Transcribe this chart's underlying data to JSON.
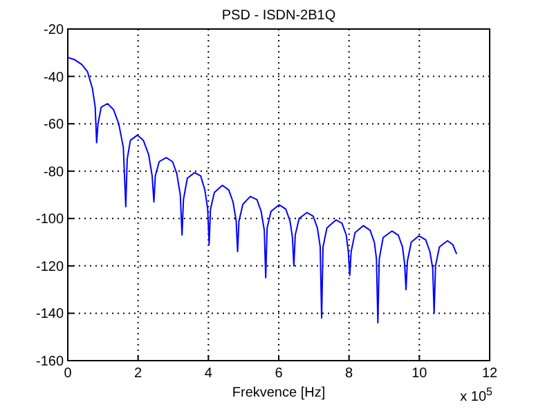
{
  "chart_data": {
    "type": "line",
    "title": "PSD - ISDN-2B1Q",
    "xlabel": "Frekvence [Hz]",
    "annotations": [
      "x 10$^{5}$"
    ],
    "xlim": [
      0,
      12
    ],
    "xticks": [
      0,
      2,
      4,
      6,
      8,
      10,
      12
    ],
    "ylim": [
      -160,
      -20
    ],
    "yticks": [
      -160,
      -140,
      -120,
      -100,
      -80,
      -60,
      -40,
      -20
    ],
    "grid": true,
    "series": [
      {
        "color": "#0000ff",
        "x": [
          0,
          0.2,
          0.4,
          0.56,
          0.7,
          0.78,
          0.82,
          0.86,
          0.95,
          1.13,
          1.3,
          1.45,
          1.58,
          1.65,
          1.69,
          1.78,
          1.98,
          2.15,
          2.3,
          2.4,
          2.45,
          2.49,
          2.6,
          2.8,
          2.98,
          3.1,
          3.2,
          3.25,
          3.29,
          3.4,
          3.61,
          3.78,
          3.9,
          3.98,
          4.02,
          4.06,
          4.17,
          4.4,
          4.58,
          4.7,
          4.79,
          4.83,
          4.87,
          4.98,
          5.19,
          5.38,
          5.5,
          5.59,
          5.63,
          5.67,
          5.78,
          6.01,
          6.2,
          6.32,
          6.39,
          6.43,
          6.47,
          6.58,
          6.8,
          6.98,
          7.1,
          7.18,
          7.22,
          7.26,
          7.37,
          7.63,
          7.8,
          7.92,
          7.98,
          8.02,
          8.06,
          8.17,
          8.41,
          8.6,
          8.72,
          8.78,
          8.82,
          8.86,
          8.97,
          9.22,
          9.4,
          9.52,
          9.58,
          9.62,
          9.66,
          9.77,
          9.99,
          10.18,
          10.3,
          10.38,
          10.42,
          10.46,
          10.57,
          10.8,
          10.95,
          11.06
        ],
        "values": [
          -32,
          -33,
          -35,
          -38,
          -45,
          -53,
          -68,
          -60,
          -53,
          -51.5,
          -54,
          -60,
          -70,
          -95,
          -75,
          -67,
          -64.8,
          -67,
          -73,
          -82,
          -93,
          -82,
          -76,
          -74.3,
          -76,
          -81,
          -90,
          -107,
          -92,
          -83,
          -80.6,
          -82,
          -88,
          -96,
          -111,
          -96,
          -89,
          -86,
          -88,
          -93,
          -101,
          -114,
          -101,
          -94,
          -90.7,
          -92,
          -97,
          -105,
          -125,
          -104,
          -97,
          -94.2,
          -96,
          -101,
          -108,
          -120,
          -107,
          -100,
          -97.5,
          -99,
          -104,
          -112,
          -142,
          -112,
          -104,
          -100.6,
          -102,
          -107,
          -114,
          -124,
          -114,
          -106,
          -103,
          -105,
          -110,
          -117,
          -144,
          -117,
          -108,
          -105.3,
          -107,
          -112,
          -119,
          -130,
          -118,
          -110,
          -107.3,
          -109,
          -114,
          -121,
          -140,
          -120,
          -112,
          -109.4,
          -111,
          -115
        ]
      }
    ]
  }
}
